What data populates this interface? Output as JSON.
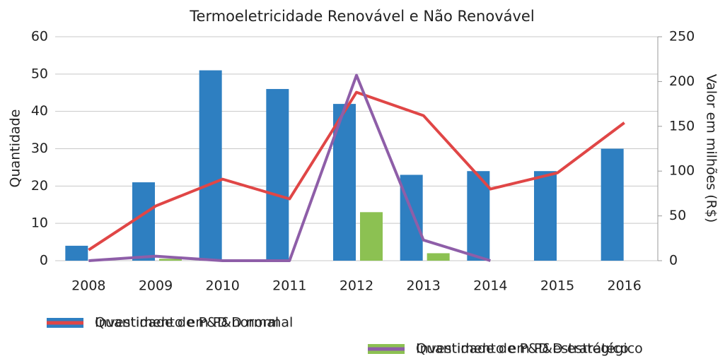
{
  "chart_data": {
    "type": "bar_line",
    "title": "Termoeletricidade Renovável e Não Renovável",
    "ylabel": "Quantidade",
    "y2label": "Valor em milhões (R$)",
    "categories": [
      "2008",
      "2009",
      "2010",
      "2011",
      "2012",
      "2013",
      "2014",
      "2015",
      "2016"
    ],
    "series": [
      {
        "name": "Quantidade de P&D normal",
        "color": "#2e7fc1",
        "kind": "bar",
        "values": [
          4,
          21,
          51,
          46,
          42,
          23,
          24,
          24,
          30
        ]
      },
      {
        "name": "Quantidade de P&D estratégico",
        "color": "#8cc152",
        "kind": "bar",
        "values": [
          0,
          0.5,
          0,
          0,
          13,
          2,
          0,
          null,
          null
        ]
      },
      {
        "name": "Investimento em P&D normal",
        "color": "#e04646",
        "kind": "line",
        "axis": "y2",
        "values": [
          12,
          61,
          91,
          69,
          188,
          162,
          80,
          98,
          154
        ]
      },
      {
        "name": "Investimento em P&D estratégico",
        "color": "#8e5ea8",
        "kind": "line",
        "axis": "y2",
        "values": [
          0,
          5,
          0,
          0,
          207,
          23,
          0,
          null,
          null
        ]
      }
    ],
    "ylim": [
      0,
      60
    ],
    "yticks": [
      0,
      10,
      20,
      30,
      40,
      50,
      60
    ],
    "y2lim": [
      0,
      250
    ],
    "y2ticks": [
      0,
      50,
      100,
      150,
      200,
      250
    ],
    "grid": true
  }
}
